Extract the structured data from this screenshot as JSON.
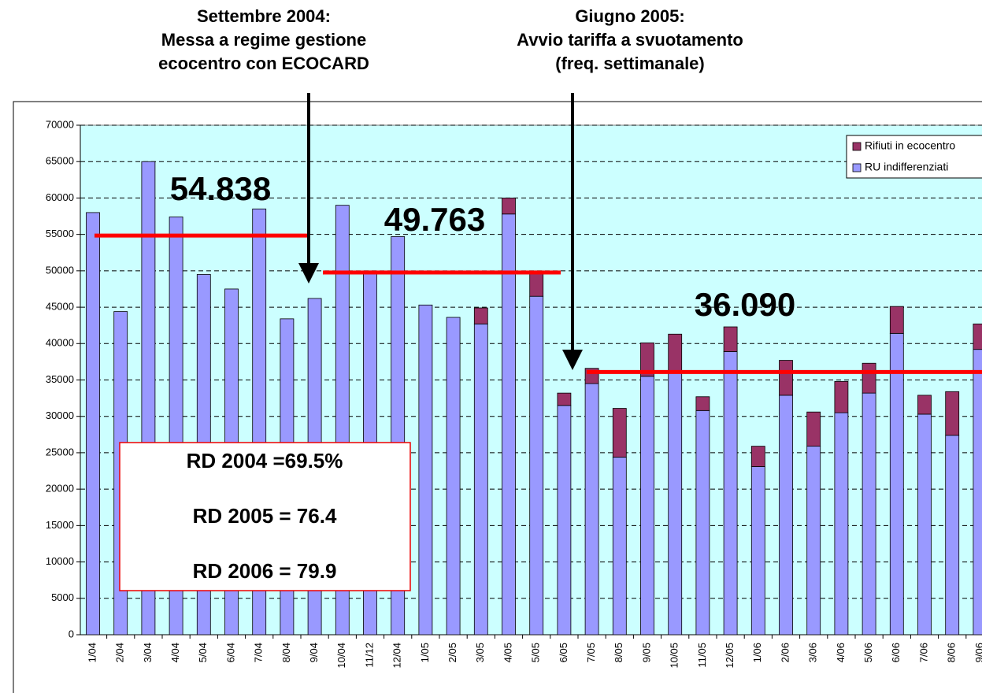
{
  "chart_data": {
    "type": "stacked_bar",
    "annotations": [
      {
        "lines": [
          "Settembre 2004:",
          "Messa a regime gestione",
          "ecocentro con ECOCARD"
        ]
      },
      {
        "lines": [
          "Giugno 2005:",
          "Avvio tariffa a svuotamento",
          "(freq. settimanale)"
        ]
      }
    ],
    "averages": [
      {
        "value": 54838,
        "label": "54.838"
      },
      {
        "value": 49763,
        "label": "49.763"
      },
      {
        "value": 36090,
        "label": "36.090"
      }
    ],
    "text_box": [
      "RD 2004 =69.5%",
      "RD 2005 = 76.4",
      "RD 2006 = 79.9"
    ],
    "categories": [
      "1/04",
      "2/04",
      "3/04",
      "4/04",
      "5/04",
      "6/04",
      "7/04",
      "8/04",
      "9/04",
      "10/04",
      "11/12",
      "12/04",
      "1/05",
      "2/05",
      "3/05",
      "4/05",
      "5/05",
      "6/05",
      "7/05",
      "8/05",
      "9/05",
      "10/05",
      "11/05",
      "12/05",
      "1/06",
      "2/06",
      "3/06",
      "4/06",
      "5/06",
      "6/06",
      "7/06",
      "8/06",
      "9/06"
    ],
    "series": [
      {
        "name": "RU indifferenziati",
        "color": "#9999ff",
        "values": [
          58000,
          44400,
          65000,
          57400,
          49500,
          47500,
          58500,
          43400,
          46200,
          59000,
          50000,
          54700,
          45300,
          43600,
          42700,
          57800,
          46500,
          31500,
          34500,
          24400,
          35500,
          36000,
          30800,
          38900,
          23100,
          32900,
          25900,
          30500,
          33200,
          41400,
          30300,
          27400,
          39200
        ]
      },
      {
        "name": "Rifiuti in ecocentro",
        "color": "#993366",
        "values": [
          0,
          0,
          0,
          0,
          0,
          0,
          0,
          0,
          0,
          0,
          0,
          0,
          0,
          0,
          2200,
          2200,
          3500,
          1700,
          2100,
          6700,
          4600,
          5300,
          1900,
          3400,
          2800,
          4800,
          4700,
          4300,
          4100,
          3700,
          2600,
          6000,
          3500
        ]
      }
    ],
    "ylim": [
      0,
      70000
    ],
    "yticks": [
      0,
      5000,
      10000,
      15000,
      20000,
      25000,
      30000,
      35000,
      40000,
      45000,
      50000,
      55000,
      60000,
      65000,
      70000
    ],
    "grid": true
  }
}
